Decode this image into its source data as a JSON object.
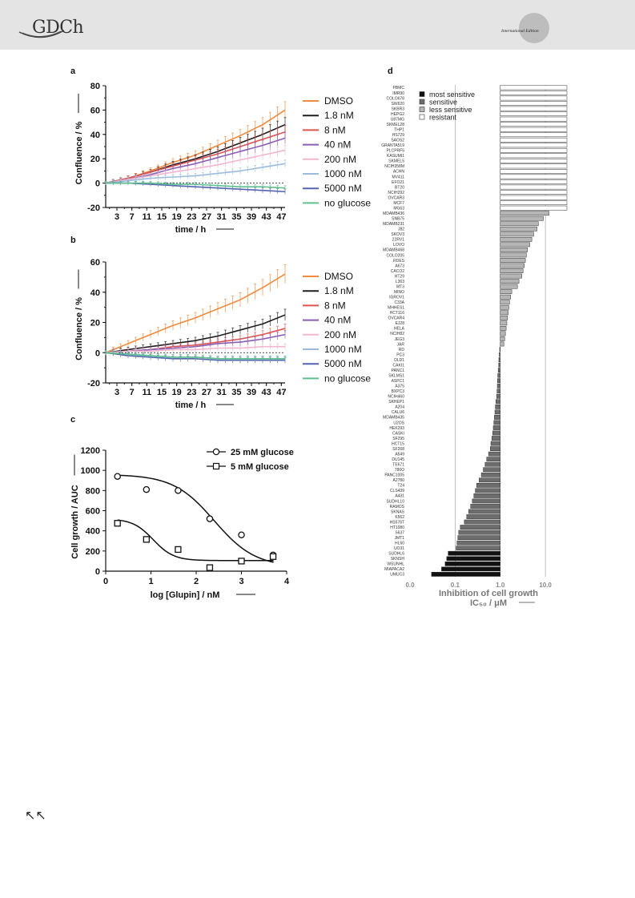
{
  "header": {
    "logo_text": "GDCh",
    "edition_label": "International Edition",
    "nav_icon": "back-arrows-icon",
    "nav_glyph": "↖↖"
  },
  "figure": {
    "panel_labels": [
      "a",
      "b",
      "c",
      "d"
    ],
    "legend_ab": [
      "DMSO",
      "1.8 nM",
      "8 nM",
      "40 nM",
      "200 nM",
      "1000 nM",
      "5000 nM",
      "no glucose"
    ],
    "legend_ab_colors": [
      "#f08a3c",
      "#1f1f1f",
      "#e0554f",
      "#8a5fb3",
      "#f2b7cf",
      "#9cbcde",
      "#5563b0",
      "#5fbf8f"
    ],
    "panel_a": {
      "ylabel": "Confluence / %",
      "xlabel": "time / h",
      "yticks": [
        "80",
        "60",
        "40",
        "20",
        "0",
        "-20"
      ],
      "xticks": [
        "3",
        "7",
        "11",
        "15",
        "19",
        "23",
        "27",
        "31",
        "35",
        "39",
        "43",
        "47"
      ]
    },
    "panel_b": {
      "ylabel": "Confluence / %",
      "xlabel": "time / h",
      "yticks": [
        "60",
        "40",
        "20",
        "0",
        "-20"
      ],
      "xticks": [
        "3",
        "7",
        "11",
        "15",
        "19",
        "23",
        "27",
        "31",
        "35",
        "39",
        "43",
        "47"
      ]
    },
    "panel_c": {
      "ylabel": "Cell growth / AUC",
      "xlabel": "log [Glupin] / nM",
      "yticks": [
        "1200",
        "1000",
        "800",
        "600",
        "400",
        "200",
        "0"
      ],
      "xticks": [
        "0",
        "1",
        "2",
        "3",
        "4"
      ],
      "legend": [
        "25 mM glucose",
        "5 mM glucose"
      ]
    },
    "panel_d": {
      "xlabel_line1": "Inhibition  of cell growth",
      "xlabel_line2": "IC₅₀ / μM",
      "xticks": [
        "0.0",
        "0.1",
        "1.0",
        "10.0"
      ],
      "legend": [
        "most sensitive",
        "sensitive",
        "less sensitive",
        "resistant"
      ],
      "legend_colors": [
        "#111111",
        "#6d6d6d",
        "#b5b5b5",
        "#ffffff"
      ]
    }
  },
  "chart_data": [
    {
      "panel": "a",
      "type": "line",
      "xlabel": "time / h",
      "ylabel": "Confluence / %",
      "ylim": [
        -20,
        80
      ],
      "xlim": [
        0,
        48
      ],
      "x": [
        0,
        6,
        12,
        18,
        24,
        30,
        36,
        42,
        48
      ],
      "series": [
        {
          "name": "DMSO",
          "values": [
            0,
            4,
            10,
            17,
            23,
            31,
            39,
            48,
            60
          ]
        },
        {
          "name": "1.8 nM",
          "values": [
            0,
            4,
            9,
            15,
            20,
            26,
            33,
            40,
            48
          ]
        },
        {
          "name": "8 nM",
          "values": [
            0,
            4,
            9,
            14,
            19,
            24,
            30,
            36,
            42
          ]
        },
        {
          "name": "40 nM",
          "values": [
            0,
            3,
            7,
            12,
            16,
            21,
            26,
            31,
            37
          ]
        },
        {
          "name": "200 nM",
          "values": [
            0,
            3,
            6,
            9,
            12,
            15,
            19,
            23,
            27
          ]
        },
        {
          "name": "1000 nM",
          "values": [
            0,
            2,
            4,
            5,
            6,
            8,
            10,
            13,
            16
          ]
        },
        {
          "name": "5000 nM",
          "values": [
            0,
            0,
            -1,
            -2,
            -3,
            -4,
            -5,
            -6,
            -7
          ]
        },
        {
          "name": "no glucose",
          "values": [
            0,
            0,
            0,
            -1,
            -1,
            -2,
            -3,
            -3,
            -4
          ]
        }
      ]
    },
    {
      "panel": "b",
      "type": "line",
      "xlabel": "time / h",
      "ylabel": "Confluence / %",
      "ylim": [
        -20,
        60
      ],
      "xlim": [
        0,
        48
      ],
      "x": [
        0,
        6,
        12,
        18,
        24,
        30,
        36,
        42,
        48
      ],
      "series": [
        {
          "name": "DMSO",
          "values": [
            0,
            6,
            12,
            18,
            23,
            29,
            35,
            43,
            52
          ]
        },
        {
          "name": "1.8 nM",
          "values": [
            0,
            2,
            4,
            6,
            8,
            11,
            15,
            19,
            25
          ]
        },
        {
          "name": "8 nM",
          "values": [
            0,
            1,
            2,
            4,
            5,
            7,
            9,
            12,
            16
          ]
        },
        {
          "name": "40 nM",
          "values": [
            0,
            1,
            2,
            3,
            4,
            6,
            7,
            9,
            12
          ]
        },
        {
          "name": "200 nM",
          "values": [
            0,
            1,
            1,
            2,
            2,
            3,
            3,
            4,
            4
          ]
        },
        {
          "name": "1000 nM",
          "values": [
            0,
            -1,
            -2,
            -3,
            -3,
            -4,
            -4,
            -4,
            -4
          ]
        },
        {
          "name": "5000 nM",
          "values": [
            0,
            -2,
            -3,
            -4,
            -4,
            -5,
            -5,
            -5,
            -5
          ]
        },
        {
          "name": "no glucose",
          "values": [
            0,
            -1,
            -2,
            -3,
            -3,
            -4,
            -4,
            -4,
            -4
          ]
        }
      ]
    },
    {
      "panel": "c",
      "type": "scatter",
      "xlabel": "log [Glupin] / nM",
      "ylabel": "Cell growth / AUC",
      "xlim": [
        0,
        4
      ],
      "ylim": [
        0,
        1200
      ],
      "series": [
        {
          "name": "25 mM glucose",
          "marker": "circle",
          "x": [
            0.26,
            0.9,
            1.6,
            2.3,
            3.0,
            3.7
          ],
          "values": [
            940,
            810,
            800,
            520,
            360,
            160
          ],
          "fit": {
            "top": 960,
            "bottom": 40,
            "ec50": 2.4,
            "hill": 0.6
          }
        },
        {
          "name": "5 mM glucose",
          "marker": "square",
          "x": [
            0.26,
            0.9,
            1.6,
            2.3,
            3.0,
            3.7
          ],
          "values": [
            475,
            315,
            215,
            35,
            100,
            145
          ],
          "fit": {
            "top": 520,
            "bottom": 105,
            "ec50": 1.05,
            "hill": 1.2
          }
        }
      ]
    },
    {
      "panel": "d",
      "type": "bar",
      "orientation": "horizontal",
      "xscale": "log",
      "xlim": [
        0.01,
        30
      ],
      "baseline": 1.0,
      "xlabel": "Inhibition  of cell growth IC₅₀ / μM",
      "categories": [
        "PBMC",
        "IMR90",
        "COLO678",
        "SW620",
        "SKBR3",
        "HEPG2",
        "U87MG",
        "SKMEL28",
        "THP1",
        "HS729",
        "SAOS2",
        "GRANTA519",
        "PLCPRF5",
        "KASUMI1",
        "SKMEL5",
        "NCIH358M",
        "ACHN",
        "MV411",
        "EFO21",
        "BT20",
        "NCIH292",
        "OVCAR3",
        "MCF7",
        "MG63",
        "MDAMB436",
        "SNB75",
        "MDAMB231",
        "J82",
        "SKOV3",
        "22RV1",
        "LOVO",
        "MDAMB468",
        "COLO205",
        "RDES",
        "A673",
        "CACO2",
        "HT29",
        "L363",
        "MT3",
        "MINO",
        "IGROV1",
        "C33A",
        "MHHES1",
        "HCT116",
        "OVCAR4",
        "EJ28",
        "HELA",
        "NCIH82",
        "JEG3",
        "JAR",
        "RD",
        "PC3",
        "DLD1",
        "CAKI1",
        "PANC1",
        "SKLMS1",
        "ASPC1",
        "A375",
        "BXPC3",
        "NCIH460",
        "SKHEP1",
        "A204",
        "CALU6",
        "MDAMB435",
        "U2OS",
        "HEK293",
        "CASKI",
        "SF295",
        "HCT15",
        "SF268",
        "A549",
        "DU145",
        "TE671",
        "786O",
        "PANC1005",
        "A2780",
        "T24",
        "CLS439",
        "A431",
        "SUDHL10",
        "RAMOS",
        "SKNAS",
        "K562",
        "HS578T",
        "HT1080",
        "5637",
        "JMT1",
        "HL60",
        "UO31",
        "SUDHL6",
        "SKNSH",
        "WSUNHL",
        "MIAPACA2",
        "UMUC3"
      ],
      "values": [
        30,
        30,
        30,
        30,
        30,
        30,
        30,
        30,
        30,
        30,
        30,
        30,
        30,
        30,
        30,
        30,
        30,
        30,
        30,
        30,
        30,
        30,
        30,
        30,
        12,
        9,
        7,
        6.5,
        5.5,
        5,
        4.5,
        4,
        3.8,
        3.6,
        3.4,
        3.2,
        3,
        2.6,
        2.4,
        1.8,
        1.7,
        1.6,
        1.55,
        1.5,
        1.45,
        1.4,
        1.35,
        1.3,
        1.25,
        1.2,
        0.97,
        0.95,
        0.93,
        0.92,
        0.9,
        0.88,
        0.87,
        0.86,
        0.85,
        0.83,
        0.8,
        0.78,
        0.76,
        0.74,
        0.72,
        0.7,
        0.68,
        0.65,
        0.62,
        0.6,
        0.55,
        0.5,
        0.46,
        0.42,
        0.38,
        0.34,
        0.3,
        0.28,
        0.26,
        0.24,
        0.22,
        0.2,
        0.18,
        0.16,
        0.13,
        0.12,
        0.115,
        0.11,
        0.105,
        0.07,
        0.065,
        0.06,
        0.05,
        0.03
      ],
      "class": [
        "resistant",
        "resistant",
        "resistant",
        "resistant",
        "resistant",
        "resistant",
        "resistant",
        "resistant",
        "resistant",
        "resistant",
        "resistant",
        "resistant",
        "resistant",
        "resistant",
        "resistant",
        "resistant",
        "resistant",
        "resistant",
        "resistant",
        "resistant",
        "resistant",
        "resistant",
        "resistant",
        "resistant",
        "less sensitive",
        "less sensitive",
        "less sensitive",
        "less sensitive",
        "less sensitive",
        "less sensitive",
        "less sensitive",
        "less sensitive",
        "less sensitive",
        "less sensitive",
        "less sensitive",
        "less sensitive",
        "less sensitive",
        "less sensitive",
        "less sensitive",
        "less sensitive",
        "less sensitive",
        "less sensitive",
        "less sensitive",
        "less sensitive",
        "less sensitive",
        "less sensitive",
        "less sensitive",
        "less sensitive",
        "less sensitive",
        "less sensitive",
        "sensitive",
        "sensitive",
        "sensitive",
        "sensitive",
        "sensitive",
        "sensitive",
        "sensitive",
        "sensitive",
        "sensitive",
        "sensitive",
        "sensitive",
        "sensitive",
        "sensitive",
        "sensitive",
        "sensitive",
        "sensitive",
        "sensitive",
        "sensitive",
        "sensitive",
        "sensitive",
        "sensitive",
        "sensitive",
        "sensitive",
        "sensitive",
        "sensitive",
        "sensitive",
        "sensitive",
        "sensitive",
        "sensitive",
        "sensitive",
        "sensitive",
        "sensitive",
        "sensitive",
        "sensitive",
        "sensitive",
        "sensitive",
        "sensitive",
        "sensitive",
        "sensitive",
        "most sensitive",
        "most sensitive",
        "most sensitive",
        "most sensitive",
        "most sensitive"
      ]
    }
  ]
}
